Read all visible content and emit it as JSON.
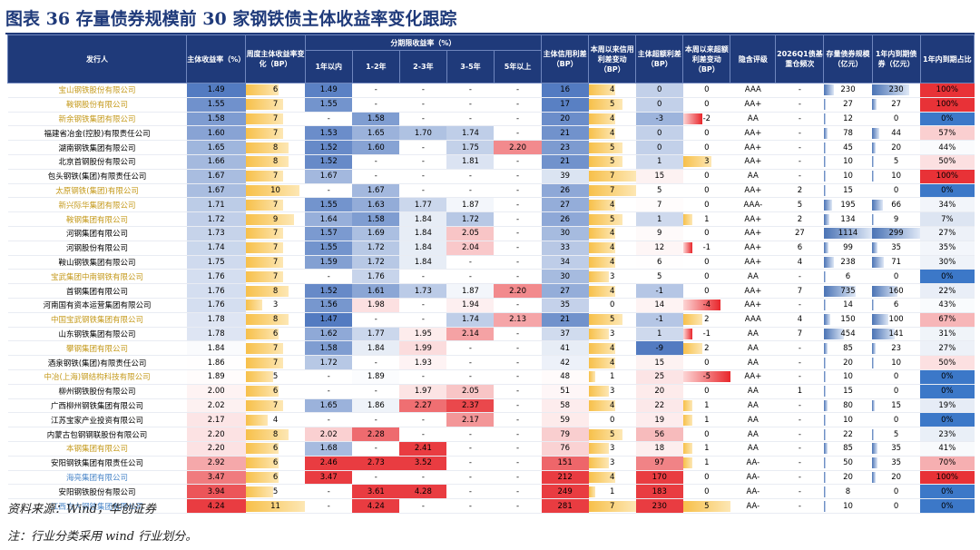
{
  "title": "图表 36    存量债券规模前 30 家钢铁债主体收益率变化跟踪",
  "headers": {
    "issuer": "发行人",
    "yield": "主体收益率（%）",
    "weekly_change": "周度主体收益率变化（BP）",
    "term_group": "分期限收益率（%）",
    "terms": [
      "1年以内",
      "1-2年",
      "2-3年",
      "3-5年",
      "5年以上"
    ],
    "credit_spread": "主体信用利差（BP）",
    "credit_spread_change": "本周以来信用利差变动（BP）",
    "excess_spread": "主体超额利差（BP）",
    "excess_spread_change": "本周以来超额利差变动（BP）",
    "implied_rating": "隐含评级",
    "holding_freq": "2026Q1债基重仓频次",
    "bond_scale": "存量债券规模（亿元）",
    "due_1y": "1年内到期债券（亿元）",
    "due_share": "1年内到期占比"
  },
  "rows": [
    {
      "name": "宝山钢铁股份有限公司",
      "style": "gold",
      "y": "1.49",
      "wc": "6",
      "t": [
        "1.49",
        "-",
        "-",
        "-",
        "-"
      ],
      "cs": "16",
      "csc": "4",
      "es": "0",
      "esc": "0",
      "rating": "AAA",
      "hf": "-",
      "scale": "230",
      "due": "230",
      "share": "100%"
    },
    {
      "name": "鞍钢股份有限公司",
      "style": "gold",
      "y": "1.55",
      "wc": "7",
      "t": [
        "1.55",
        "-",
        "-",
        "-",
        "-"
      ],
      "cs": "17",
      "csc": "5",
      "es": "0",
      "esc": "0",
      "rating": "AA+",
      "hf": "-",
      "scale": "27",
      "due": "27",
      "share": "100%"
    },
    {
      "name": "新余钢铁集团有限公司",
      "style": "gold",
      "y": "1.58",
      "wc": "7",
      "t": [
        "-",
        "1.58",
        "-",
        "-",
        "-"
      ],
      "cs": "20",
      "csc": "4",
      "es": "-3",
      "esc": "-2",
      "rating": "AA",
      "hf": "-",
      "scale": "12",
      "due": "0",
      "share": "0%"
    },
    {
      "name": "福建省冶金(控股)有限责任公司",
      "style": "",
      "y": "1.60",
      "wc": "7",
      "t": [
        "1.53",
        "1.65",
        "1.70",
        "1.74",
        "-"
      ],
      "cs": "21",
      "csc": "4",
      "es": "0",
      "esc": "0",
      "rating": "AA+",
      "hf": "-",
      "scale": "78",
      "due": "44",
      "share": "57%"
    },
    {
      "name": "湖南钢铁集团有限公司",
      "style": "",
      "y": "1.65",
      "wc": "8",
      "t": [
        "1.52",
        "1.60",
        "-",
        "1.75",
        "2.20"
      ],
      "cs": "23",
      "csc": "5",
      "es": "0",
      "esc": "0",
      "rating": "AA+",
      "hf": "-",
      "scale": "45",
      "due": "20",
      "share": "44%"
    },
    {
      "name": "北京首钢股份有限公司",
      "style": "",
      "y": "1.66",
      "wc": "8",
      "t": [
        "1.52",
        "-",
        "-",
        "1.81",
        "-"
      ],
      "cs": "21",
      "csc": "5",
      "es": "1",
      "esc": "3",
      "rating": "AA+",
      "hf": "-",
      "scale": "10",
      "due": "5",
      "share": "50%"
    },
    {
      "name": "包头钢铁(集团)有限责任公司",
      "style": "",
      "y": "1.67",
      "wc": "7",
      "t": [
        "1.67",
        "-",
        "-",
        "-",
        "-"
      ],
      "cs": "39",
      "csc": "7",
      "es": "15",
      "esc": "0",
      "rating": "AA",
      "hf": "-",
      "scale": "10",
      "due": "10",
      "share": "100%"
    },
    {
      "name": "太原钢铁(集团)有限公司",
      "style": "gold",
      "y": "1.67",
      "wc": "10",
      "t": [
        "-",
        "1.67",
        "-",
        "-",
        "-"
      ],
      "cs": "26",
      "csc": "7",
      "es": "5",
      "esc": "0",
      "rating": "AA+",
      "hf": "2",
      "scale": "15",
      "due": "0",
      "share": "0%"
    },
    {
      "name": "新兴际华集团有限公司",
      "style": "gold",
      "y": "1.71",
      "wc": "7",
      "t": [
        "1.55",
        "1.63",
        "1.77",
        "1.87",
        "-"
      ],
      "cs": "27",
      "csc": "4",
      "es": "7",
      "esc": "0",
      "rating": "AAA-",
      "hf": "5",
      "scale": "195",
      "due": "66",
      "share": "34%"
    },
    {
      "name": "鞍钢集团有限公司",
      "style": "gold",
      "y": "1.72",
      "wc": "9",
      "t": [
        "1.64",
        "1.58",
        "1.84",
        "1.72",
        "-"
      ],
      "cs": "26",
      "csc": "5",
      "es": "1",
      "esc": "1",
      "rating": "AA+",
      "hf": "2",
      "scale": "134",
      "due": "9",
      "share": "7%"
    },
    {
      "name": "河钢集团有限公司",
      "style": "",
      "y": "1.73",
      "wc": "7",
      "t": [
        "1.57",
        "1.69",
        "1.84",
        "2.05",
        "-"
      ],
      "cs": "30",
      "csc": "4",
      "es": "9",
      "esc": "0",
      "rating": "AA+",
      "hf": "27",
      "scale": "1114",
      "due": "299",
      "share": "27%"
    },
    {
      "name": "河钢股份有限公司",
      "style": "",
      "y": "1.74",
      "wc": "7",
      "t": [
        "1.55",
        "1.72",
        "1.84",
        "2.04",
        "-"
      ],
      "cs": "33",
      "csc": "4",
      "es": "12",
      "esc": "-1",
      "rating": "AA+",
      "hf": "6",
      "scale": "99",
      "due": "35",
      "share": "35%"
    },
    {
      "name": "鞍山钢铁集团有限公司",
      "style": "",
      "y": "1.75",
      "wc": "7",
      "t": [
        "1.59",
        "1.72",
        "1.84",
        "-",
        "-"
      ],
      "cs": "34",
      "csc": "4",
      "es": "6",
      "esc": "0",
      "rating": "AA+",
      "hf": "4",
      "scale": "238",
      "due": "71",
      "share": "30%"
    },
    {
      "name": "宝武集团中南钢铁有限公司",
      "style": "gold",
      "y": "1.76",
      "wc": "7",
      "t": [
        "-",
        "1.76",
        "-",
        "-",
        "-"
      ],
      "cs": "30",
      "csc": "3",
      "es": "5",
      "esc": "0",
      "rating": "AA",
      "hf": "-",
      "scale": "6",
      "due": "0",
      "share": "0%"
    },
    {
      "name": "首钢集团有限公司",
      "style": "",
      "y": "1.76",
      "wc": "8",
      "t": [
        "1.52",
        "1.61",
        "1.73",
        "1.87",
        "2.20"
      ],
      "cs": "27",
      "csc": "4",
      "es": "-1",
      "esc": "0",
      "rating": "AA+",
      "hf": "7",
      "scale": "735",
      "due": "160",
      "share": "22%"
    },
    {
      "name": "河南国有资本运营集团有限公司",
      "style": "",
      "y": "1.76",
      "wc": "3",
      "t": [
        "1.56",
        "1.98",
        "-",
        "1.94",
        "-"
      ],
      "cs": "35",
      "csc": "0",
      "es": "14",
      "esc": "-4",
      "rating": "AA+",
      "hf": "-",
      "scale": "14",
      "due": "6",
      "share": "43%"
    },
    {
      "name": "中国宝武钢铁集团有限公司",
      "style": "gold",
      "y": "1.78",
      "wc": "8",
      "t": [
        "1.47",
        "-",
        "-",
        "1.74",
        "2.13"
      ],
      "cs": "21",
      "csc": "5",
      "es": "-1",
      "esc": "2",
      "rating": "AAA",
      "hf": "4",
      "scale": "150",
      "due": "100",
      "share": "67%"
    },
    {
      "name": "山东钢铁集团有限公司",
      "style": "",
      "y": "1.78",
      "wc": "6",
      "t": [
        "1.62",
        "1.77",
        "1.95",
        "2.14",
        "-"
      ],
      "cs": "37",
      "csc": "3",
      "es": "1",
      "esc": "-1",
      "rating": "AA",
      "hf": "7",
      "scale": "454",
      "due": "141",
      "share": "31%"
    },
    {
      "name": "攀钢集团有限公司",
      "style": "gold",
      "y": "1.84",
      "wc": "7",
      "t": [
        "1.58",
        "1.84",
        "1.99",
        "-",
        "-"
      ],
      "cs": "41",
      "csc": "4",
      "es": "-9",
      "esc": "2",
      "rating": "AA",
      "hf": "-",
      "scale": "85",
      "due": "23",
      "share": "27%"
    },
    {
      "name": "酒泉钢铁(集团)有限责任公司",
      "style": "",
      "y": "1.86",
      "wc": "7",
      "t": [
        "1.72",
        "-",
        "1.93",
        "-",
        "-"
      ],
      "cs": "42",
      "csc": "4",
      "es": "15",
      "esc": "0",
      "rating": "AA",
      "hf": "-",
      "scale": "20",
      "due": "10",
      "share": "50%"
    },
    {
      "name": "中冶(上海)钢结构科技有限公司",
      "style": "gold",
      "y": "1.89",
      "wc": "5",
      "t": [
        "-",
        "1.89",
        "-",
        "-",
        "-"
      ],
      "cs": "48",
      "csc": "1",
      "es": "25",
      "esc": "-5",
      "rating": "AA+",
      "hf": "-",
      "scale": "10",
      "due": "0",
      "share": "0%"
    },
    {
      "name": "柳州钢铁股份有限公司",
      "style": "",
      "y": "2.00",
      "wc": "6",
      "t": [
        "-",
        "-",
        "1.97",
        "2.05",
        "-"
      ],
      "cs": "51",
      "csc": "3",
      "es": "20",
      "esc": "0",
      "rating": "AA",
      "hf": "1",
      "scale": "15",
      "due": "0",
      "share": "0%"
    },
    {
      "name": "广西柳州钢铁集团有限公司",
      "style": "",
      "y": "2.02",
      "wc": "7",
      "t": [
        "1.65",
        "1.86",
        "2.27",
        "2.37",
        "-"
      ],
      "cs": "58",
      "csc": "4",
      "es": "22",
      "esc": "1",
      "rating": "AA",
      "hf": "-",
      "scale": "80",
      "due": "15",
      "share": "19%"
    },
    {
      "name": "江苏宝家产业投资有限公司",
      "style": "",
      "y": "2.17",
      "wc": "4",
      "t": [
        "-",
        "-",
        "-",
        "2.17",
        "-"
      ],
      "cs": "59",
      "csc": "0",
      "es": "19",
      "esc": "1",
      "rating": "AA",
      "hf": "-",
      "scale": "10",
      "due": "0",
      "share": "0%"
    },
    {
      "name": "内蒙古包钢钢联股份有限公司",
      "style": "",
      "y": "2.20",
      "wc": "8",
      "t": [
        "2.02",
        "2.28",
        "-",
        "-",
        "-"
      ],
      "cs": "79",
      "csc": "5",
      "es": "56",
      "esc": "0",
      "rating": "AA",
      "hf": "-",
      "scale": "22",
      "due": "5",
      "share": "23%"
    },
    {
      "name": "本钢集团有限公司",
      "style": "gold",
      "y": "2.20",
      "wc": "6",
      "t": [
        "1.68",
        "-",
        "2.41",
        "-",
        "-"
      ],
      "cs": "76",
      "csc": "3",
      "es": "18",
      "esc": "1",
      "rating": "AA",
      "hf": "-",
      "scale": "85",
      "due": "35",
      "share": "41%"
    },
    {
      "name": "安阳钢铁集团有限责任公司",
      "style": "",
      "y": "2.92",
      "wc": "6",
      "t": [
        "2.46",
        "2.73",
        "3.52",
        "-",
        "-"
      ],
      "cs": "151",
      "csc": "3",
      "es": "97",
      "esc": "1",
      "rating": "AA-",
      "hf": "-",
      "scale": "50",
      "due": "35",
      "share": "70%"
    },
    {
      "name": "海亮集团有限公司",
      "style": "hl",
      "y": "3.47",
      "wc": "6",
      "t": [
        "3.47",
        "-",
        "-",
        "-",
        "-"
      ],
      "cs": "212",
      "csc": "4",
      "es": "170",
      "esc": "0",
      "rating": "AA-",
      "hf": "-",
      "scale": "20",
      "due": "20",
      "share": "100%"
    },
    {
      "name": "安阳钢铁股份有限公司",
      "style": "",
      "y": "3.94",
      "wc": "5",
      "t": [
        "-",
        "3.61",
        "4.28",
        "-",
        "-"
      ],
      "cs": "249",
      "csc": "1",
      "es": "183",
      "esc": "0",
      "rating": "AA-",
      "hf": "-",
      "scale": "8",
      "due": "0",
      "share": "0%"
    },
    {
      "name": "江西方大钢铁集团有限公司",
      "style": "hl",
      "y": "4.24",
      "wc": "11",
      "t": [
        "-",
        "4.24",
        "-",
        "-",
        "-"
      ],
      "cs": "281",
      "csc": "7",
      "es": "230",
      "esc": "5",
      "rating": "AA-",
      "hf": "-",
      "scale": "10",
      "due": "0",
      "share": "0%"
    }
  ],
  "footer": {
    "source": "资料来源：Wind，华创证券",
    "note": "注：行业分类采用 wind 行业划分。"
  }
}
